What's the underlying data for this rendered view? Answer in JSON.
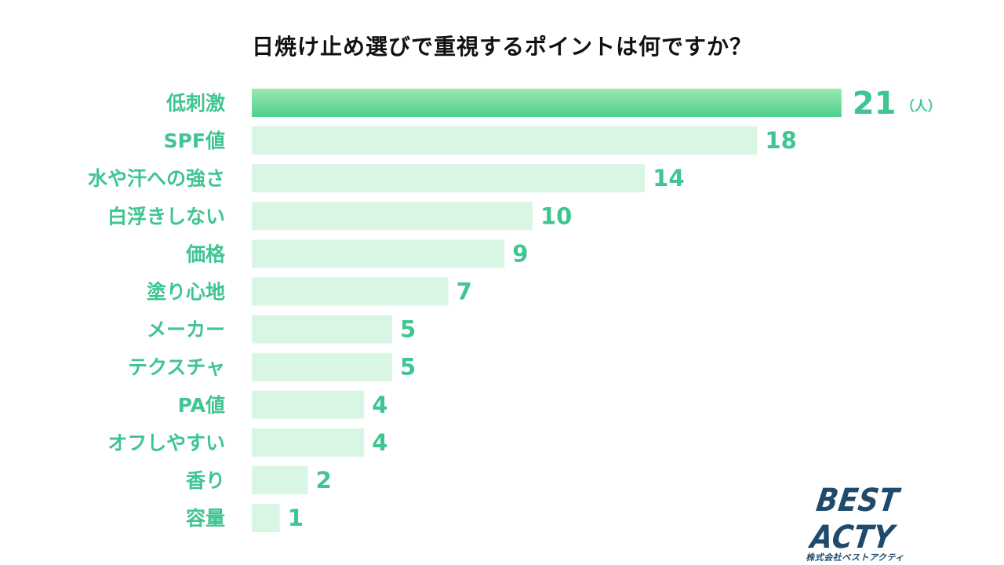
{
  "chart_data": {
    "type": "bar",
    "orientation": "horizontal",
    "title": "日焼け止め選びで重視するポイントは何ですか？",
    "categories": [
      "低刺激",
      "SPF値",
      "水や汗への強さ",
      "白浮きしない",
      "価格",
      "塗り心地",
      "メーカー",
      "テクスチャ",
      "PA値",
      "オフしやすい",
      "香り",
      "容量"
    ],
    "values": [
      21,
      18,
      14,
      10,
      9,
      7,
      5,
      5,
      4,
      4,
      2,
      1
    ],
    "unit": "（人）",
    "highlight_index": 0,
    "colors": {
      "highlight_start": "#9be8b3",
      "highlight_end": "#4fcf8e",
      "bar": "#d9f6e4",
      "text": "#3fc592"
    },
    "grid": false,
    "legend": "none"
  },
  "logo": {
    "name": "BEST ACTY",
    "company": "株式会社ベストアクティ"
  }
}
